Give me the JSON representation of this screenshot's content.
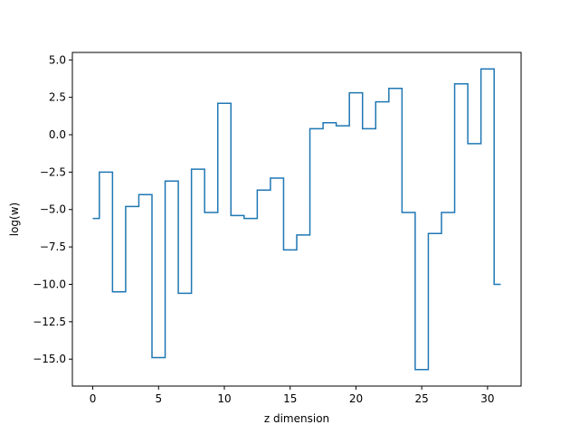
{
  "chart_data": {
    "type": "line",
    "drawstyle": "steps-mid",
    "title": "",
    "xlabel": "z dimension",
    "ylabel": "log(w)",
    "xlim": [
      -1.55,
      32.55
    ],
    "ylim": [
      -16.8,
      5.5
    ],
    "xticks": [
      0,
      5,
      10,
      15,
      20,
      25,
      30
    ],
    "xtick_labels": [
      "0",
      "5",
      "10",
      "15",
      "20",
      "25",
      "30"
    ],
    "yticks": [
      5.0,
      2.5,
      0.0,
      -2.5,
      -5.0,
      -7.5,
      -10.0,
      -12.5,
      -15.0
    ],
    "ytick_labels": [
      "5.0",
      "2.5",
      "0.0",
      "−2.5",
      "−5.0",
      "−7.5",
      "−10.0",
      "−12.5",
      "−15.0"
    ],
    "grid": false,
    "legend": "none",
    "series": [
      {
        "color": "#1f77b4",
        "x": [
          0,
          1,
          2,
          3,
          4,
          5,
          6,
          7,
          8,
          9,
          10,
          11,
          12,
          13,
          14,
          15,
          16,
          17,
          18,
          19,
          20,
          21,
          22,
          23,
          24,
          25,
          26,
          27,
          28,
          29,
          30,
          31
        ],
        "y": [
          -5.6,
          -2.5,
          -10.5,
          -4.8,
          -4.0,
          -14.9,
          -3.1,
          -10.6,
          -2.3,
          -5.2,
          2.1,
          -5.4,
          -5.6,
          -3.7,
          -2.9,
          -7.7,
          -6.7,
          0.4,
          0.8,
          0.6,
          2.8,
          0.4,
          2.2,
          3.1,
          -5.2,
          -15.7,
          -6.6,
          -5.2,
          3.4,
          -0.6,
          4.4,
          -10.0
        ]
      }
    ]
  }
}
